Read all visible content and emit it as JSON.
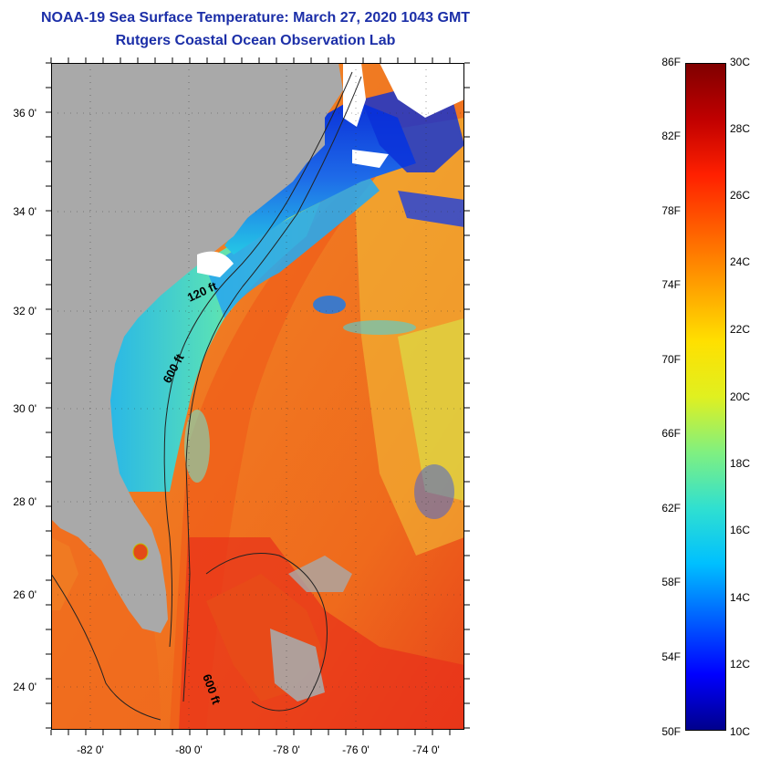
{
  "title_line1": "NOAA-19 Sea Surface Temperature:  March 27, 2020 1043 GMT",
  "title_line2": "Rutgers Coastal Ocean Observation Lab",
  "map": {
    "lat_labels": [
      "36 0'",
      "34 0'",
      "32 0'",
      "30 0'",
      "28 0'",
      "26 0'",
      "24 0'"
    ],
    "lon_labels": [
      "-82 0'",
      "-80 0'",
      "-78 0'",
      "-76 0'",
      "-74 0'"
    ],
    "contour_labels": [
      "120 ft",
      "600 ft",
      "600 ft"
    ],
    "colors": {
      "land": "#a9a9a9",
      "cold": "#1a3fd6",
      "cool": "#24c7e6",
      "mild": "#d9e84a",
      "warm": "#f07a22",
      "hot": "#e8341a"
    }
  },
  "colorbar": {
    "fahrenheit": [
      "86F",
      "82F",
      "78F",
      "74F",
      "70F",
      "66F",
      "62F",
      "58F",
      "54F",
      "50F"
    ],
    "celsius": [
      "30C",
      "28C",
      "26C",
      "24C",
      "22C",
      "20C",
      "18C",
      "16C",
      "14C",
      "12C",
      "10C"
    ],
    "gradient": [
      "#00008c",
      "#0000ff",
      "#0060ff",
      "#00c0ff",
      "#30e0d0",
      "#80f080",
      "#e0f020",
      "#ffe000",
      "#ffa000",
      "#ff6000",
      "#ff2000",
      "#c00000",
      "#800000"
    ]
  }
}
